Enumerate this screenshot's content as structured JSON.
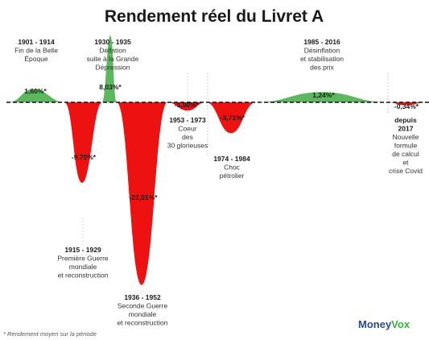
{
  "chart_data": {
    "type": "area",
    "title": "Rendement réel du Livret A",
    "unit": "%",
    "footnote": "* Rendement moyen sur la période",
    "source_logo": {
      "part1": "Money",
      "part2": "Vox"
    },
    "colors": {
      "positive": "#5cb85c",
      "negative": "#ee1111"
    },
    "periods": [
      {
        "period": "1901 - 1914",
        "description": [
          "Fin de la Belle",
          "Époque"
        ],
        "value": 1.6,
        "value_label": "1,60%*"
      },
      {
        "period": "1915 - 1929",
        "description": [
          "Première Guerre",
          "mondiale",
          "et reconstruction"
        ],
        "value": -9.7,
        "value_label": "-9,70%*"
      },
      {
        "period": "1930 - 1935",
        "description": [
          "Déflation",
          "suite à la Grande",
          "Dépression"
        ],
        "value": 8.03,
        "value_label": "8,03%*"
      },
      {
        "period": "1936 - 1952",
        "description": [
          "Seconde Guerre",
          "mondiale",
          "et reconstruction"
        ],
        "value": -22.01,
        "value_label": "-22,01%*"
      },
      {
        "period": "1953 - 1973",
        "description": [
          "Coeur",
          "des",
          "30 glorieuses"
        ],
        "value": -1.0,
        "value_label": "-1,00%*"
      },
      {
        "period": "1974 - 1984",
        "description": [
          "Choc",
          "pétrolier"
        ],
        "value": -3.71,
        "value_label": "-3,71%*"
      },
      {
        "period": "1985 - 2016",
        "description": [
          "Désinflation",
          "et stabilisation",
          "des prix"
        ],
        "value": 1.24,
        "value_label": "1,24%*"
      },
      {
        "period": "depuis 2017",
        "period_lines": [
          "depuis",
          "2017"
        ],
        "description": [
          "Nouvelle",
          "formule",
          "de calcul",
          "et",
          "crise Covid"
        ],
        "value": -0.34,
        "value_label": "-0,34%*"
      }
    ]
  }
}
